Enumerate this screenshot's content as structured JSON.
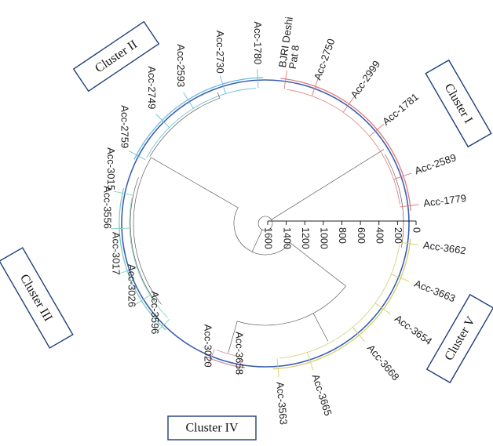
{
  "leaves": [
    {
      "label": "BJRI Deshi Pat 8",
      "lines": [
        "BJRI Deshi",
        "Pat 8"
      ],
      "cluster": 1
    },
    {
      "label": "Acc-2750",
      "cluster": 1
    },
    {
      "label": "Acc-2999",
      "cluster": 1
    },
    {
      "label": "Acc-1781",
      "cluster": 1
    },
    {
      "label": "Acc-2589",
      "cluster": 1
    },
    {
      "label": "Acc-1779",
      "cluster": 1
    },
    {
      "label": "Acc-3662",
      "cluster": 5
    },
    {
      "label": "Acc-3663",
      "cluster": 5
    },
    {
      "label": "Acc-3654",
      "cluster": 5
    },
    {
      "label": "Acc-3668",
      "cluster": 5
    },
    {
      "label": "Acc-3665",
      "cluster": 5
    },
    {
      "label": "Acc-3563",
      "cluster": 5
    },
    {
      "label": "Acc-3658",
      "cluster": 4
    },
    {
      "label": "Acc-3020",
      "cluster": 4
    },
    {
      "label": "Acc-3596",
      "cluster": 3
    },
    {
      "label": "Acc-3026",
      "cluster": 3
    },
    {
      "label": "Acc-3017",
      "cluster": 3
    },
    {
      "label": "Acc-3556",
      "cluster": 3
    },
    {
      "label": "Acc-3015",
      "cluster": 3
    },
    {
      "label": "Acc-2759",
      "cluster": 2
    },
    {
      "label": "Acc-2749",
      "cluster": 2
    },
    {
      "label": "Acc-2593",
      "cluster": 2
    },
    {
      "label": "Acc-2730",
      "cluster": 2
    },
    {
      "label": "Acc-1780",
      "cluster": 2
    }
  ],
  "clusters": [
    {
      "id": 1,
      "label": "Cluster I",
      "color": "#e07a7a"
    },
    {
      "id": 2,
      "label": "Cluster II",
      "color": "#6bbbd8"
    },
    {
      "id": 3,
      "label": "Cluster III",
      "color": "#7fcfc0"
    },
    {
      "id": 4,
      "label": "Cluster IV",
      "color": "#c98fa8"
    },
    {
      "id": 5,
      "label": "Cluster V",
      "color": "#d4cf6a"
    }
  ],
  "scale": {
    "ticks": [
      "0",
      "200",
      "400",
      "600",
      "800",
      "1000",
      "1200",
      "1400",
      "1600"
    ]
  },
  "colors": {
    "ring": "#3a5fb0",
    "branches": "#444444"
  }
}
